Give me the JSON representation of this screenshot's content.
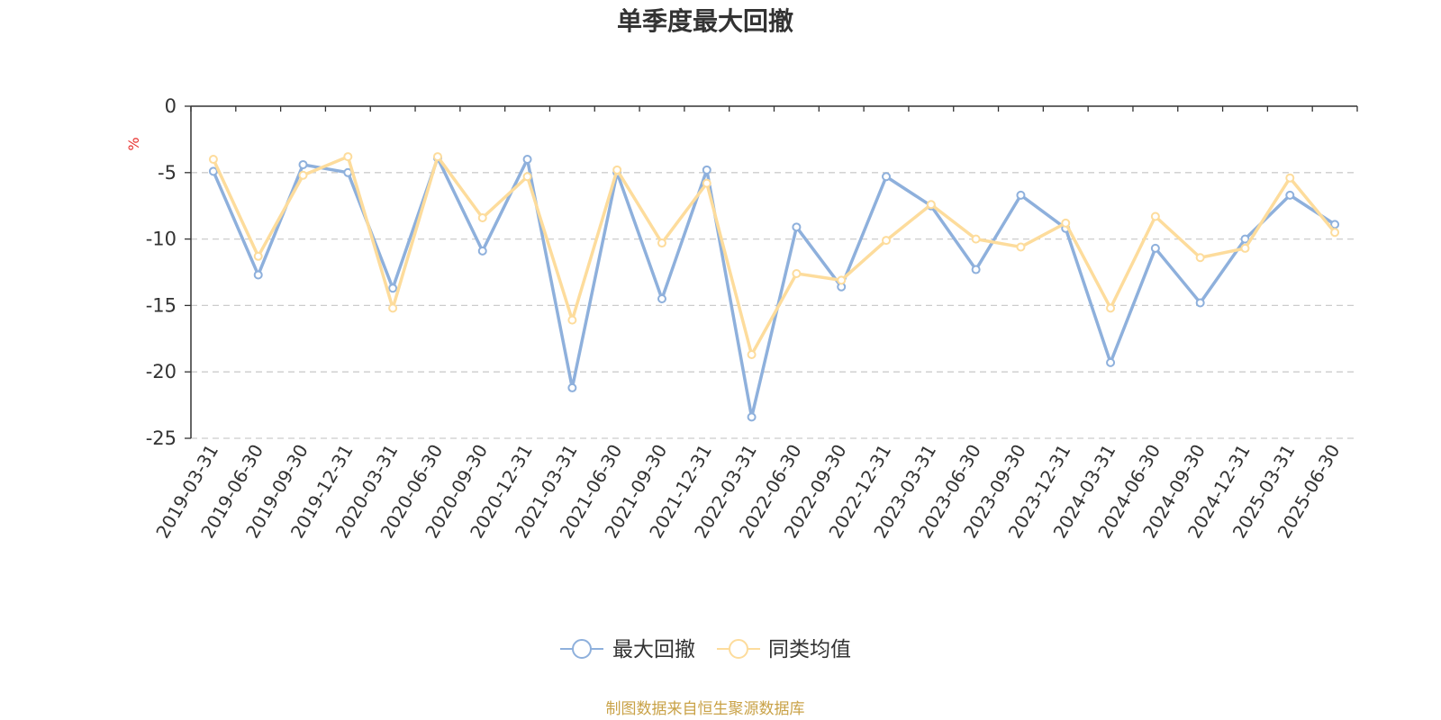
{
  "chart_data": {
    "type": "line",
    "title": "单季度最大回撤",
    "ylabel": "%",
    "xlabel": "",
    "ylim": [
      -25,
      0
    ],
    "y_ticks": [
      0,
      -5,
      -10,
      -15,
      -20,
      -25
    ],
    "grid": true,
    "legend_position": "bottom",
    "categories": [
      "2019-03-31",
      "2019-06-30",
      "2019-09-30",
      "2019-12-31",
      "2020-03-31",
      "2020-06-30",
      "2020-09-30",
      "2020-12-31",
      "2021-03-31",
      "2021-06-30",
      "2021-09-30",
      "2021-12-31",
      "2022-03-31",
      "2022-06-30",
      "2022-09-30",
      "2022-12-31",
      "2023-03-31",
      "2023-06-30",
      "2023-09-30",
      "2023-12-31",
      "2024-03-31",
      "2024-06-30",
      "2024-09-30",
      "2024-12-31",
      "2025-03-31",
      "2025-06-30"
    ],
    "series": [
      {
        "name": "最大回撤",
        "color": "#8eb0dc",
        "values": [
          -4.9,
          -12.7,
          -4.4,
          -5.0,
          -13.7,
          -3.9,
          -10.9,
          -4.0,
          -21.2,
          -5.0,
          -14.5,
          -4.8,
          -23.4,
          -9.1,
          -13.6,
          -5.3,
          -7.5,
          -12.3,
          -6.7,
          -9.2,
          -19.3,
          -10.7,
          -14.8,
          -10.0,
          -6.7,
          -8.9
        ]
      },
      {
        "name": "同类均值",
        "color": "#fddc9c",
        "values": [
          -4.0,
          -11.3,
          -5.2,
          -3.8,
          -15.2,
          -3.8,
          -8.4,
          -5.3,
          -16.1,
          -4.8,
          -10.3,
          -5.8,
          -18.7,
          -12.6,
          -13.1,
          -10.1,
          -7.4,
          -10.0,
          -10.6,
          -8.8,
          -15.2,
          -8.3,
          -11.4,
          -10.7,
          -5.4,
          -9.5
        ]
      }
    ],
    "source": "制图数据来自恒生聚源数据库",
    "colors": {
      "axis": "#333333",
      "grid": "#cccccc",
      "unit": "#e8322f",
      "source": "#c9a247",
      "title": "#333333"
    }
  }
}
